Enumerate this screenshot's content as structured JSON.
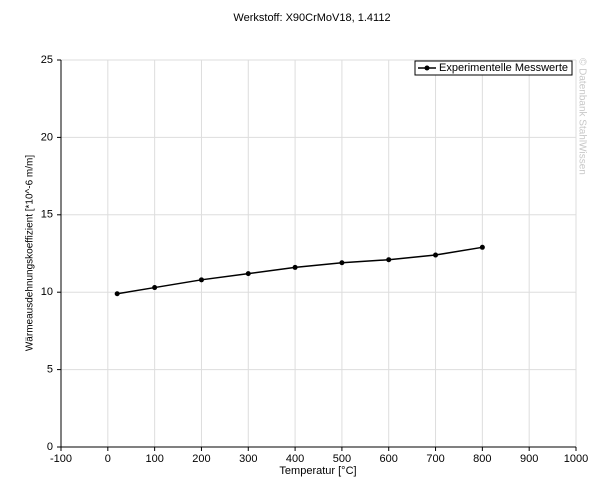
{
  "chart_data": {
    "type": "line",
    "title": "Werkstoff: X90CrMoV18, 1.4112",
    "x_label": "Temperatur [°C]",
    "y_label": "Wärmeausdehnungskoeffizient [*10^-6 m/m]",
    "watermark": "© Datenbank StahlWissen",
    "x": [
      20,
      100,
      200,
      300,
      400,
      500,
      600,
      700,
      800
    ],
    "series": [
      {
        "name": "Experimentelle Messwerte",
        "color": "#000000",
        "values": [
          9.9,
          10.3,
          10.8,
          11.2,
          11.6,
          11.9,
          12.1,
          12.4,
          12.9
        ]
      }
    ],
    "xlim": [
      -100,
      1000
    ],
    "xticks": [
      -100,
      0,
      100,
      200,
      300,
      400,
      500,
      600,
      700,
      800,
      900,
      1000
    ],
    "ylim": [
      0,
      25
    ],
    "yticks": [
      0,
      5,
      10,
      15,
      20,
      25
    ],
    "grid": true,
    "legend": "top-right"
  }
}
